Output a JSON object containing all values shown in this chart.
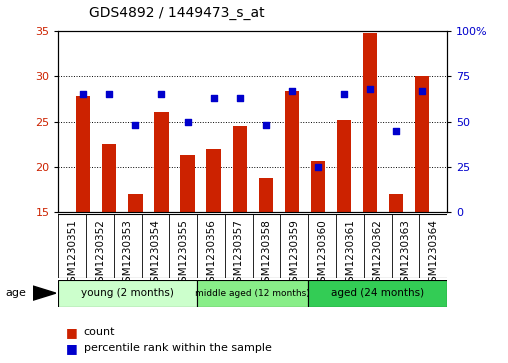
{
  "title": "GDS4892 / 1449473_s_at",
  "samples": [
    "GSM1230351",
    "GSM1230352",
    "GSM1230353",
    "GSM1230354",
    "GSM1230355",
    "GSM1230356",
    "GSM1230357",
    "GSM1230358",
    "GSM1230359",
    "GSM1230360",
    "GSM1230361",
    "GSM1230362",
    "GSM1230363",
    "GSM1230364"
  ],
  "counts": [
    27.8,
    22.5,
    17.0,
    26.1,
    21.3,
    22.0,
    24.5,
    18.8,
    28.4,
    20.7,
    25.2,
    34.8,
    17.0,
    30.0
  ],
  "percentiles": [
    65,
    65,
    48,
    65,
    50,
    63,
    63,
    48,
    67,
    25,
    65,
    68,
    45,
    67
  ],
  "ylim_left": [
    15,
    35
  ],
  "ylim_right": [
    0,
    100
  ],
  "yticks_left": [
    15,
    20,
    25,
    30,
    35
  ],
  "yticks_right": [
    0,
    25,
    50,
    75,
    100
  ],
  "bar_color": "#cc2200",
  "dot_color": "#0000cc",
  "bar_bottom": 15,
  "group_colors": [
    "#ccffcc",
    "#88ee88",
    "#33cc55"
  ],
  "group_labels": [
    "young (2 months)",
    "middle aged (12 months)",
    "aged (24 months)"
  ],
  "group_starts": [
    0,
    5,
    9
  ],
  "group_ends": [
    5,
    9,
    14
  ],
  "age_label": "age",
  "bg_color": "#cccccc",
  "label_fontsize": 7.5,
  "title_fontsize": 10
}
